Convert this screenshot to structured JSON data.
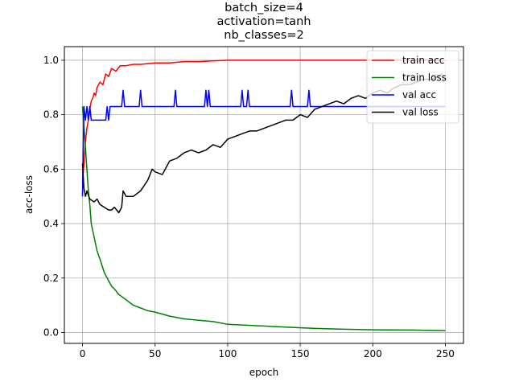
{
  "chart_data": {
    "type": "line",
    "title_lines": [
      "batch_size=4",
      "activation=tanh",
      "nb_classes=2"
    ],
    "xlabel": "epoch",
    "ylabel": "acc-loss",
    "xlim": [
      -12.5,
      262.5
    ],
    "ylim": [
      -0.04,
      1.05
    ],
    "xticks": [
      0,
      50,
      100,
      150,
      200,
      250
    ],
    "xtick_labels": [
      "0",
      "50",
      "100",
      "150",
      "200",
      "250"
    ],
    "yticks": [
      0.0,
      0.2,
      0.4,
      0.6,
      0.8,
      1.0
    ],
    "ytick_labels": [
      "0.0",
      "0.2",
      "0.4",
      "0.6",
      "0.8",
      "1.0"
    ],
    "grid": true,
    "legend_position": "top-right",
    "series": [
      {
        "name": "train acc",
        "color": "#ff0000",
        "x": [
          0,
          1,
          2,
          3,
          4,
          5,
          6,
          7,
          8,
          9,
          10,
          12,
          14,
          16,
          18,
          20,
          23,
          26,
          30,
          35,
          40,
          50,
          60,
          70,
          80,
          100,
          120,
          150,
          200,
          250
        ],
        "y": [
          0.55,
          0.62,
          0.7,
          0.75,
          0.78,
          0.82,
          0.85,
          0.86,
          0.88,
          0.87,
          0.9,
          0.92,
          0.91,
          0.95,
          0.94,
          0.97,
          0.96,
          0.98,
          0.98,
          0.985,
          0.985,
          0.99,
          0.99,
          0.995,
          0.995,
          1.0,
          1.0,
          1.0,
          1.0,
          1.0
        ]
      },
      {
        "name": "train loss",
        "color": "#008000",
        "x": [
          0,
          1,
          2,
          3,
          4,
          5,
          6,
          8,
          10,
          12,
          15,
          18,
          20,
          22,
          25,
          30,
          35,
          40,
          45,
          50,
          60,
          70,
          80,
          90,
          100,
          120,
          140,
          160,
          180,
          200,
          225,
          250
        ],
        "y": [
          0.83,
          0.76,
          0.68,
          0.6,
          0.52,
          0.47,
          0.4,
          0.35,
          0.3,
          0.27,
          0.22,
          0.19,
          0.17,
          0.16,
          0.14,
          0.12,
          0.1,
          0.09,
          0.08,
          0.075,
          0.06,
          0.05,
          0.045,
          0.04,
          0.03,
          0.025,
          0.02,
          0.015,
          0.012,
          0.01,
          0.009,
          0.007
        ]
      },
      {
        "name": "val acc",
        "color": "#0000ff",
        "x": [
          0,
          1,
          2,
          3,
          4,
          5,
          6,
          16,
          17,
          18,
          19,
          27,
          28,
          29,
          39,
          40,
          41,
          63,
          64,
          65,
          84,
          85,
          86,
          87,
          88,
          109,
          110,
          111,
          113,
          114,
          115,
          143,
          144,
          145,
          155,
          156,
          157,
          250
        ],
        "y": [
          0.5,
          0.83,
          0.78,
          0.83,
          0.78,
          0.83,
          0.78,
          0.78,
          0.83,
          0.78,
          0.83,
          0.83,
          0.89,
          0.83,
          0.83,
          0.89,
          0.83,
          0.83,
          0.89,
          0.83,
          0.83,
          0.89,
          0.83,
          0.89,
          0.83,
          0.83,
          0.89,
          0.83,
          0.83,
          0.89,
          0.83,
          0.83,
          0.89,
          0.83,
          0.83,
          0.89,
          0.83,
          0.83
        ]
      },
      {
        "name": "val loss",
        "color": "#000000",
        "x": [
          0,
          1,
          2,
          3,
          5,
          8,
          10,
          12,
          15,
          18,
          20,
          22,
          25,
          27,
          28,
          30,
          35,
          40,
          45,
          48,
          50,
          55,
          60,
          65,
          70,
          75,
          80,
          85,
          90,
          95,
          100,
          105,
          110,
          115,
          120,
          125,
          130,
          135,
          140,
          145,
          150,
          155,
          160,
          165,
          170,
          175,
          180,
          185,
          190,
          195,
          200,
          205,
          210,
          215,
          220,
          225,
          230,
          235,
          240,
          245,
          248
        ],
        "y": [
          0.62,
          0.53,
          0.5,
          0.52,
          0.49,
          0.48,
          0.49,
          0.47,
          0.46,
          0.45,
          0.45,
          0.46,
          0.44,
          0.46,
          0.52,
          0.5,
          0.5,
          0.52,
          0.56,
          0.6,
          0.59,
          0.58,
          0.63,
          0.64,
          0.66,
          0.67,
          0.66,
          0.67,
          0.69,
          0.68,
          0.71,
          0.72,
          0.73,
          0.74,
          0.74,
          0.75,
          0.76,
          0.77,
          0.78,
          0.78,
          0.8,
          0.79,
          0.82,
          0.83,
          0.84,
          0.85,
          0.84,
          0.86,
          0.87,
          0.86,
          0.88,
          0.89,
          0.88,
          0.9,
          0.91,
          0.91,
          0.92,
          0.93,
          0.93,
          0.94,
          0.95
        ]
      }
    ]
  }
}
